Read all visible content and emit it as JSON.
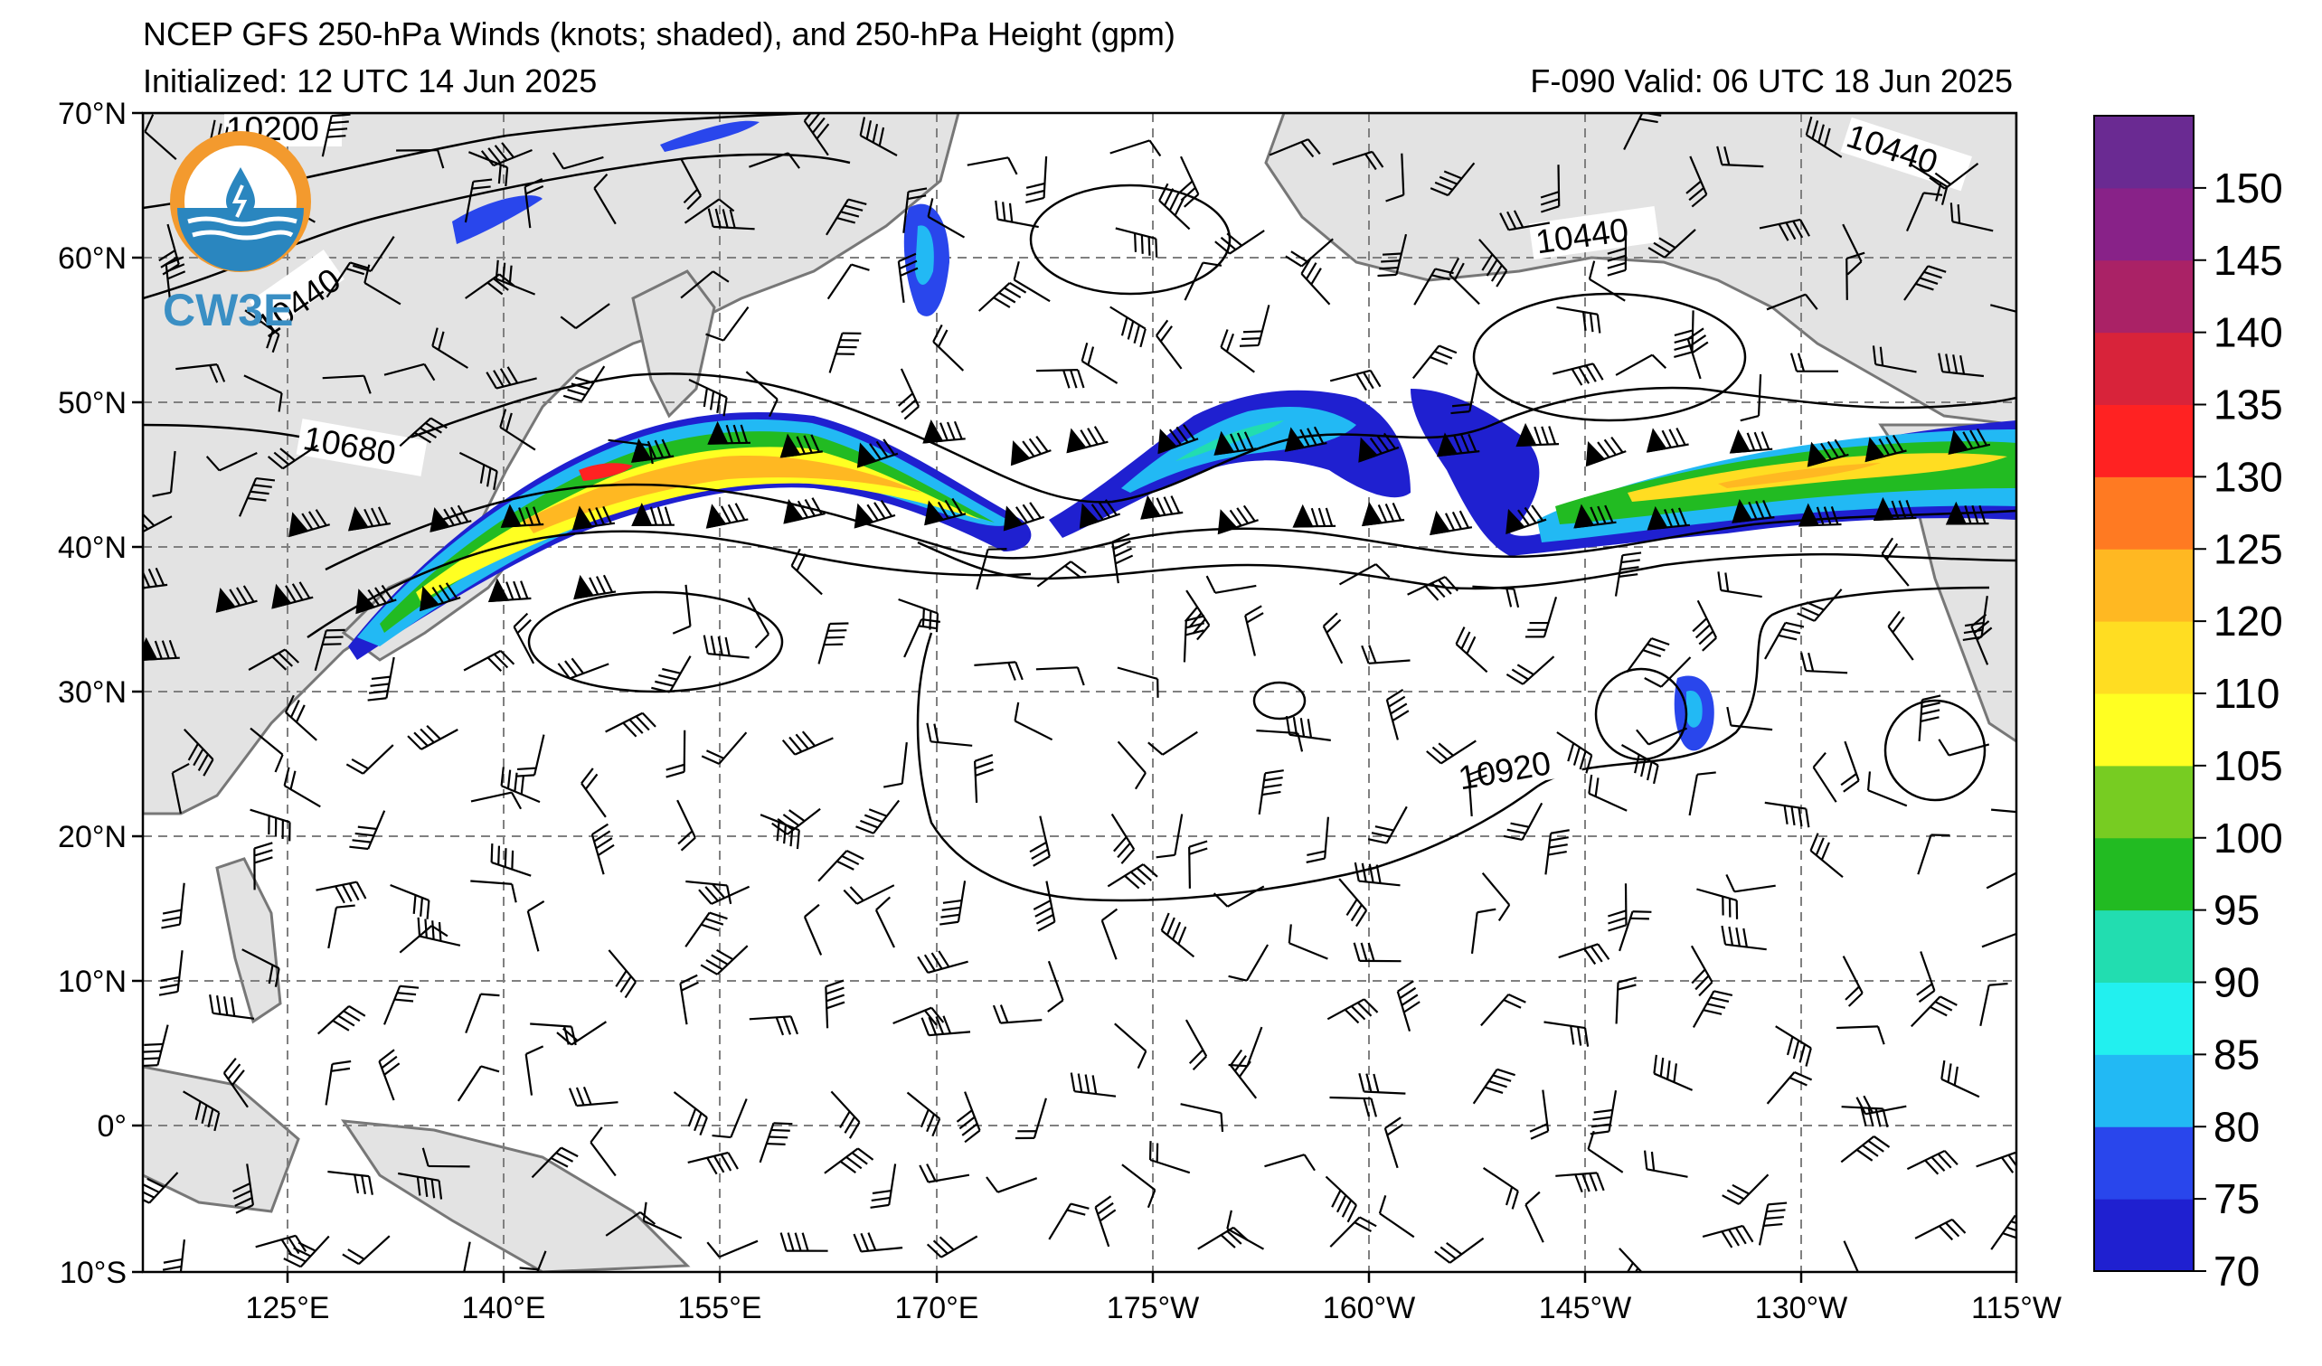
{
  "header": {
    "title": "NCEP GFS 250-hPa Winds (knots; shaded), and 250-hPa Height (gpm)",
    "initialized": "Initialized: 12 UTC 14 Jun 2025",
    "valid": "F-090  Valid: 06 UTC 18 Jun 2025"
  },
  "logo": {
    "text": "CW3E",
    "colors": {
      "orange": "#f39a2e",
      "blue": "#2a86bf",
      "teal": "#3fa6cf"
    }
  },
  "map": {
    "lat_labels": [
      "70°N",
      "60°N",
      "50°N",
      "40°N",
      "30°N",
      "20°N",
      "10°N",
      "0°",
      "10°S"
    ],
    "lon_labels": [
      "125°E",
      "140°E",
      "155°E",
      "170°E",
      "175°W",
      "160°W",
      "145°W",
      "130°W",
      "115°W"
    ],
    "lat_range": [
      -10,
      70
    ],
    "lon_range": [
      115,
      245
    ],
    "grid": true,
    "land_color": "#e3e3e3",
    "contour_labels": [
      "10200",
      "10440",
      "10680",
      "10440",
      "10440",
      "10920"
    ],
    "contour_interval_gpm": 120
  },
  "colorbar": {
    "ticks": [
      "70",
      "75",
      "80",
      "85",
      "90",
      "95",
      "100",
      "105",
      "110",
      "120",
      "125",
      "130",
      "135",
      "140",
      "145",
      "150"
    ],
    "colors": [
      "#1f20d0",
      "#2946ec",
      "#22b9f4",
      "#22f0ef",
      "#22ddb0",
      "#22bb22",
      "#77cc22",
      "#ffff22",
      "#ffdd22",
      "#ffb822",
      "#ff7a22",
      "#ff2222",
      "#d8233a",
      "#aa2266",
      "#882288",
      "#6a2a92"
    ]
  },
  "chart_data": {
    "type": "heatmap",
    "title": "NCEP GFS 250-hPa Winds (knots; shaded), and 250-hPa Height (gpm)",
    "variable": "250-hPa wind speed (knots)",
    "legend_range": [
      70,
      150
    ],
    "height_contours_gpm": [
      10200,
      10440,
      10680,
      10920
    ],
    "jet_streak_max_knots": 135
  }
}
